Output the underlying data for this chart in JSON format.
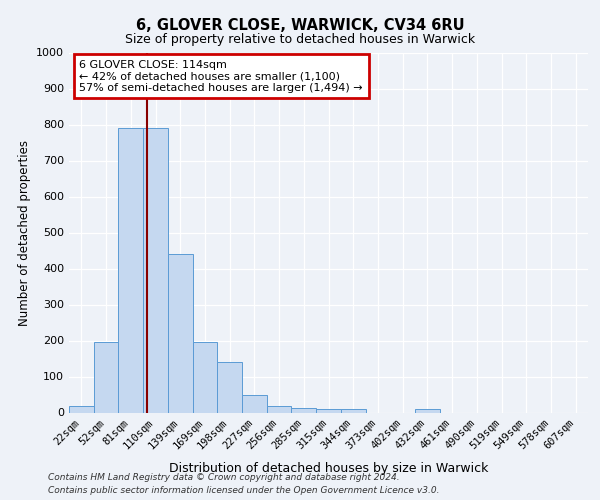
{
  "title": "6, GLOVER CLOSE, WARWICK, CV34 6RU",
  "subtitle": "Size of property relative to detached houses in Warwick",
  "xlabel": "Distribution of detached houses by size in Warwick",
  "ylabel": "Number of detached properties",
  "categories": [
    "22sqm",
    "52sqm",
    "81sqm",
    "110sqm",
    "139sqm",
    "169sqm",
    "198sqm",
    "227sqm",
    "256sqm",
    "285sqm",
    "315sqm",
    "344sqm",
    "373sqm",
    "402sqm",
    "432sqm",
    "461sqm",
    "490sqm",
    "519sqm",
    "549sqm",
    "578sqm",
    "607sqm"
  ],
  "values": [
    18,
    195,
    790,
    790,
    440,
    195,
    140,
    50,
    18,
    12,
    10,
    10,
    0,
    0,
    10,
    0,
    0,
    0,
    0,
    0,
    0
  ],
  "bar_color": "#c5d8f0",
  "bar_edge_color": "#5b9bd5",
  "ylim": [
    0,
    1000
  ],
  "yticks": [
    0,
    100,
    200,
    300,
    400,
    500,
    600,
    700,
    800,
    900,
    1000
  ],
  "property_line_color": "#880000",
  "annotation_line1": "6 GLOVER CLOSE: 114sqm",
  "annotation_line2": "← 42% of detached houses are smaller (1,100)",
  "annotation_line3": "57% of semi-detached houses are larger (1,494) →",
  "annotation_box_color": "#cc0000",
  "bg_color": "#eef2f8",
  "grid_color": "#ffffff",
  "footer_line1": "Contains HM Land Registry data © Crown copyright and database right 2024.",
  "footer_line2": "Contains public sector information licensed under the Open Government Licence v3.0."
}
